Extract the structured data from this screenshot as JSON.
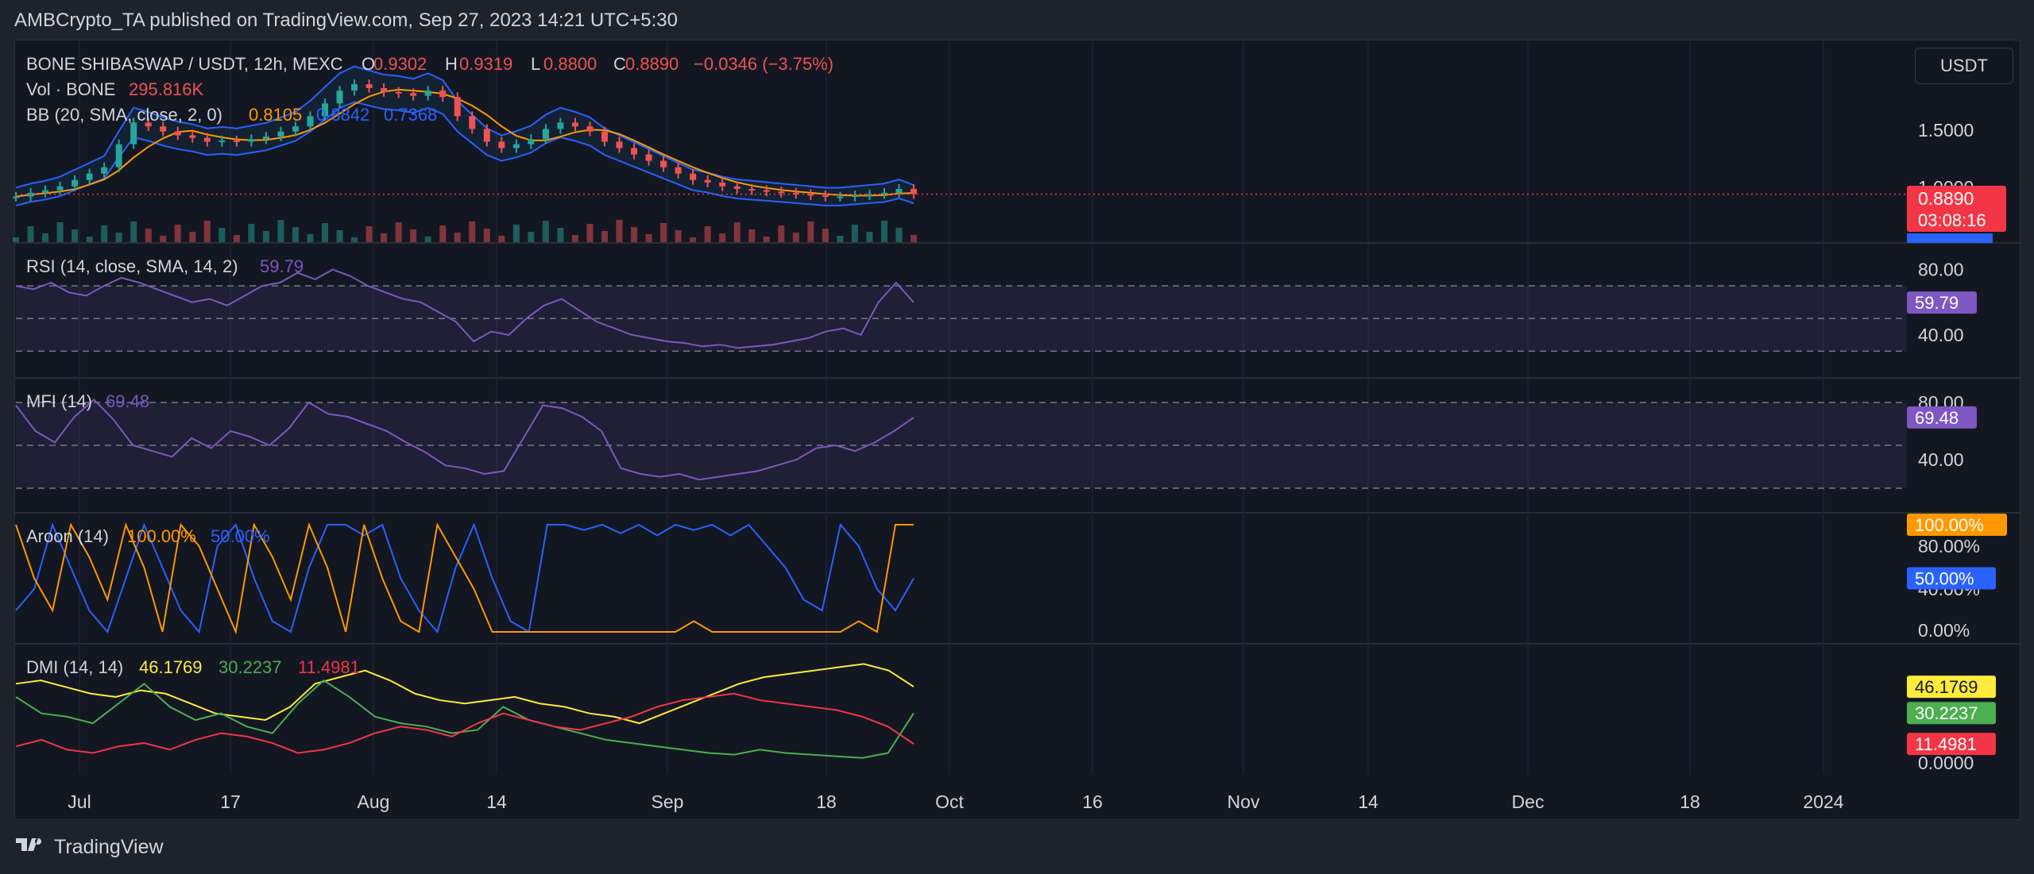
{
  "header": {
    "title": "AMBCrypto_TA published on TradingView.com, Sep 27, 2023 14:21 UTC+5:30"
  },
  "footer": {
    "brand": "TradingView",
    "logo_icon": "tradingview-logo-icon"
  },
  "currency_button": "USDT",
  "colors": {
    "up": "#26a69a",
    "down": "#ef5350",
    "bb_basis": "#ff9800",
    "bb_band": "#2962ff",
    "rsi": "#7e57c2",
    "mfi": "#7e57c2",
    "aroon_up": "#ff9800",
    "aroon_down": "#2962ff",
    "dmi_adx": "#ffeb3b",
    "dmi_plus": "#4caf50",
    "dmi_minus": "#f23645"
  },
  "chart_data": [
    {
      "type": "candlestick",
      "title": "BONE SHIBASWAP / USDT, 12h, MEXC",
      "legend": {
        "o_label": "O",
        "o": "0.9302",
        "h_label": "H",
        "h": "0.9319",
        "l_label": "L",
        "l": "0.8800",
        "c_label": "C",
        "c": "0.8890",
        "chg": "−0.0346 (−3.75%)"
      },
      "volume_label": "Vol · BONE",
      "volume_value": "295.816K",
      "bb_label": "BB (20, SMA, close, 2, 0)",
      "bb_basis": "0.8105",
      "bb_upper": "0.8842",
      "bb_lower": "0.7368",
      "y_ticks": [
        "1.5000",
        "1.0000"
      ],
      "last_price": "0.8890",
      "countdown": "03:08:16",
      "bb_badge": "0.8842",
      "close_series": [
        0.87,
        0.9,
        0.92,
        0.95,
        1.0,
        1.05,
        1.1,
        1.28,
        1.45,
        1.42,
        1.38,
        1.35,
        1.33,
        1.3,
        1.31,
        1.3,
        1.32,
        1.34,
        1.38,
        1.42,
        1.5,
        1.6,
        1.7,
        1.75,
        1.72,
        1.69,
        1.68,
        1.66,
        1.7,
        1.65,
        1.5,
        1.4,
        1.3,
        1.25,
        1.28,
        1.32,
        1.4,
        1.45,
        1.42,
        1.38,
        1.3,
        1.25,
        1.2,
        1.15,
        1.1,
        1.05,
        1.0,
        0.98,
        0.95,
        0.93,
        0.92,
        0.91,
        0.9,
        0.89,
        0.88,
        0.87,
        0.87,
        0.88,
        0.89,
        0.9,
        0.93,
        0.889
      ]
    },
    {
      "type": "line",
      "title": "RSI (14, close, SMA, 14, 2)",
      "value": "59.79",
      "y_ticks": [
        "80.00",
        "40.00"
      ],
      "ylim": [
        20,
        90
      ],
      "values": [
        70,
        68,
        72,
        66,
        64,
        70,
        75,
        72,
        68,
        64,
        60,
        62,
        58,
        64,
        70,
        72,
        78,
        74,
        80,
        76,
        70,
        66,
        62,
        60,
        54,
        48,
        36,
        42,
        40,
        50,
        58,
        62,
        55,
        48,
        44,
        40,
        38,
        36,
        35,
        33,
        34,
        32,
        33,
        34,
        36,
        38,
        42,
        44,
        40,
        60,
        72,
        59.79
      ]
    },
    {
      "type": "line",
      "title": "MFI (14)",
      "value": "69.48",
      "y_ticks": [
        "80.00",
        "40.00"
      ],
      "ylim": [
        10,
        90
      ],
      "values": [
        78,
        60,
        52,
        70,
        82,
        68,
        50,
        46,
        42,
        55,
        48,
        60,
        56,
        50,
        62,
        80,
        72,
        70,
        65,
        60,
        52,
        45,
        36,
        34,
        30,
        32,
        55,
        78,
        76,
        70,
        60,
        34,
        30,
        28,
        30,
        26,
        28,
        30,
        32,
        36,
        40,
        48,
        50,
        46,
        52,
        60,
        69.48
      ]
    },
    {
      "type": "line",
      "title": "Aroon (14)",
      "series": [
        {
          "name": "Aroon Up",
          "value": "100.00%"
        },
        {
          "name": "Aroon Down",
          "value": "50.00%"
        }
      ],
      "y_ticks": [
        "80.00%",
        "40.00%",
        "0.00%"
      ],
      "ylim": [
        0,
        100
      ],
      "aroon_up": [
        100,
        50,
        20,
        100,
        70,
        30,
        100,
        60,
        0,
        100,
        80,
        40,
        0,
        100,
        70,
        30,
        100,
        60,
        0,
        100,
        50,
        10,
        0,
        100,
        70,
        40,
        0,
        0,
        0,
        0,
        0,
        0,
        0,
        0,
        0,
        0,
        0,
        10,
        0,
        0,
        0,
        0,
        0,
        0,
        0,
        0,
        10,
        0,
        100,
        100
      ],
      "aroon_down": [
        20,
        40,
        100,
        60,
        20,
        0,
        50,
        100,
        60,
        20,
        0,
        80,
        100,
        50,
        10,
        0,
        60,
        100,
        100,
        90,
        100,
        50,
        20,
        0,
        60,
        100,
        50,
        10,
        0,
        100,
        100,
        95,
        100,
        92,
        100,
        90,
        100,
        95,
        100,
        90,
        100,
        80,
        60,
        30,
        20,
        100,
        80,
        40,
        20,
        50
      ]
    },
    {
      "type": "line",
      "title": "DMI (14, 14)",
      "series": [
        {
          "name": "ADX",
          "value": "46.1769"
        },
        {
          "name": "+DI",
          "value": "30.2237"
        },
        {
          "name": "−DI",
          "value": "11.4981"
        }
      ],
      "y_ticks": [
        "0.0000"
      ],
      "ylim": [
        0,
        65
      ],
      "adx": [
        48,
        50,
        46,
        42,
        40,
        44,
        42,
        36,
        30,
        28,
        26,
        34,
        48,
        52,
        56,
        50,
        42,
        38,
        36,
        38,
        40,
        36,
        34,
        30,
        28,
        24,
        30,
        36,
        42,
        48,
        52,
        54,
        56,
        58,
        60,
        56,
        46.18
      ],
      "plus_di": [
        40,
        30,
        28,
        24,
        36,
        48,
        34,
        26,
        30,
        22,
        18,
        36,
        50,
        40,
        28,
        24,
        22,
        18,
        20,
        34,
        26,
        22,
        18,
        14,
        12,
        10,
        8,
        6,
        5,
        8,
        6,
        5,
        4,
        3,
        6,
        30.22
      ],
      "minus_di": [
        10,
        14,
        8,
        6,
        10,
        12,
        8,
        14,
        18,
        16,
        12,
        6,
        8,
        12,
        18,
        22,
        20,
        16,
        24,
        30,
        26,
        22,
        20,
        24,
        28,
        34,
        38,
        40,
        42,
        38,
        36,
        34,
        32,
        28,
        22,
        11.5
      ]
    }
  ],
  "x_axis": [
    "Jul",
    "17",
    "Aug",
    "14",
    "Sep",
    "18",
    "Oct",
    "16",
    "Nov",
    "14",
    "Dec",
    "18",
    "2024"
  ]
}
